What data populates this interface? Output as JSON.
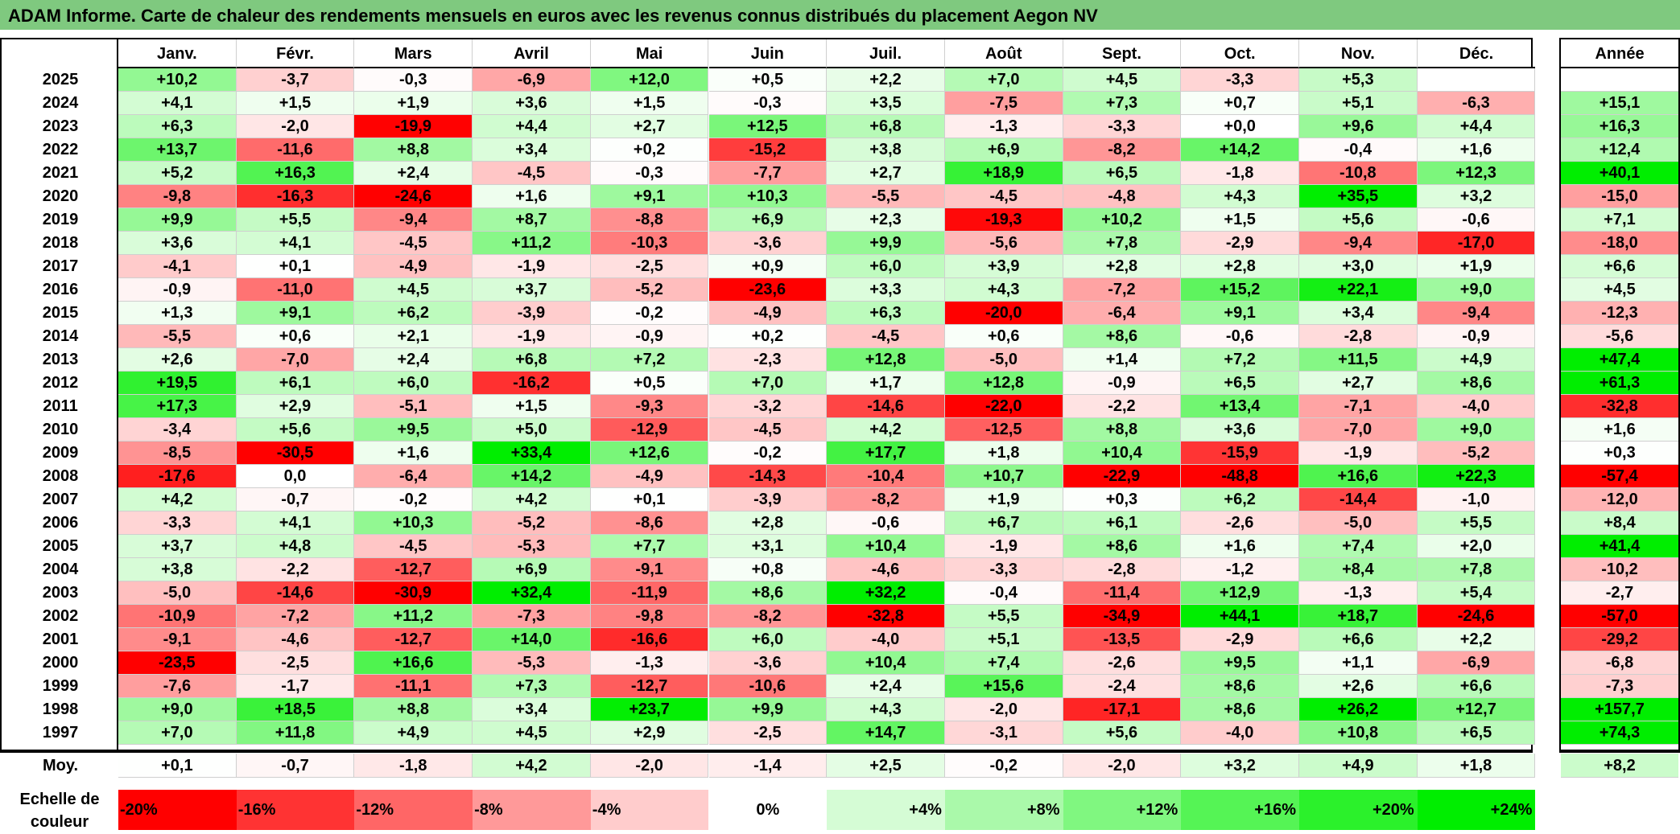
{
  "title": "ADAM Informe. Carte de chaleur des rendements mensuels en euros avec les revenus connus distribués du placement Aegon NV",
  "chart_data": {
    "type": "heatmap",
    "title": "ADAM Informe. Carte de chaleur des rendements mensuels en euros avec les revenus connus distribués du placement Aegon NV",
    "months": [
      "Janv.",
      "Févr.",
      "Mars",
      "Avril",
      "Mai",
      "Juin",
      "Juil.",
      "Août",
      "Sept.",
      "Oct.",
      "Nov.",
      "Déc."
    ],
    "year_header": "Année",
    "rows": [
      {
        "year": "2025",
        "values": [
          "+10,2",
          "-3,7",
          "-0,3",
          "-6,9",
          "+12,0",
          "+0,5",
          "+2,2",
          "+7,0",
          "+4,5",
          "-3,3",
          "+5,3",
          ""
        ],
        "annual": ""
      },
      {
        "year": "2024",
        "values": [
          "+4,1",
          "+1,5",
          "+1,9",
          "+3,6",
          "+1,5",
          "-0,3",
          "+3,5",
          "-7,5",
          "+7,3",
          "+0,7",
          "+5,1",
          "-6,3"
        ],
        "annual": "+15,1"
      },
      {
        "year": "2023",
        "values": [
          "+6,3",
          "-2,0",
          "-19,9",
          "+4,4",
          "+2,7",
          "+12,5",
          "+6,8",
          "-1,3",
          "-3,3",
          "+0,0",
          "+9,6",
          "+4,4"
        ],
        "annual": "+16,3"
      },
      {
        "year": "2022",
        "values": [
          "+13,7",
          "-11,6",
          "+8,8",
          "+3,4",
          "+0,2",
          "-15,2",
          "+3,8",
          "+6,9",
          "-8,2",
          "+14,2",
          "-0,4",
          "+1,6"
        ],
        "annual": "+12,4"
      },
      {
        "year": "2021",
        "values": [
          "+5,2",
          "+16,3",
          "+2,4",
          "-4,5",
          "-0,3",
          "-7,7",
          "+2,7",
          "+18,9",
          "+6,5",
          "-1,8",
          "-10,8",
          "+12,3"
        ],
        "annual": "+40,1"
      },
      {
        "year": "2020",
        "values": [
          "-9,8",
          "-16,3",
          "-24,6",
          "+1,6",
          "+9,1",
          "+10,3",
          "-5,5",
          "-4,5",
          "-4,8",
          "+4,3",
          "+35,5",
          "+3,2"
        ],
        "annual": "-15,0"
      },
      {
        "year": "2019",
        "values": [
          "+9,9",
          "+5,5",
          "-9,4",
          "+8,7",
          "-8,8",
          "+6,9",
          "+2,3",
          "-19,3",
          "+10,2",
          "+1,5",
          "+5,6",
          "-0,6"
        ],
        "annual": "+7,1"
      },
      {
        "year": "2018",
        "values": [
          "+3,6",
          "+4,1",
          "-4,5",
          "+11,2",
          "-10,3",
          "-3,6",
          "+9,9",
          "-5,6",
          "+7,8",
          "-2,9",
          "-9,4",
          "-17,0"
        ],
        "annual": "-18,0"
      },
      {
        "year": "2017",
        "values": [
          "-4,1",
          "+0,1",
          "-4,9",
          "-1,9",
          "-2,5",
          "+0,9",
          "+6,0",
          "+3,9",
          "+2,8",
          "+2,8",
          "+3,0",
          "+1,9"
        ],
        "annual": "+6,6"
      },
      {
        "year": "2016",
        "values": [
          "-0,9",
          "-11,0",
          "+4,5",
          "+3,7",
          "-5,2",
          "-23,6",
          "+3,3",
          "+4,3",
          "-7,2",
          "+15,2",
          "+22,1",
          "+9,0"
        ],
        "annual": "+4,5"
      },
      {
        "year": "2015",
        "values": [
          "+1,3",
          "+9,1",
          "+6,2",
          "-3,9",
          "-0,2",
          "-4,9",
          "+6,3",
          "-20,0",
          "-6,4",
          "+9,1",
          "+3,4",
          "-9,4"
        ],
        "annual": "-12,3"
      },
      {
        "year": "2014",
        "values": [
          "-5,5",
          "+0,6",
          "+2,1",
          "-1,9",
          "-0,9",
          "+0,2",
          "-4,5",
          "+0,6",
          "+8,6",
          "-0,6",
          "-2,8",
          "-0,9"
        ],
        "annual": "-5,6"
      },
      {
        "year": "2013",
        "values": [
          "+2,6",
          "-7,0",
          "+2,4",
          "+6,8",
          "+7,2",
          "-2,3",
          "+12,8",
          "-5,0",
          "+1,4",
          "+7,2",
          "+11,5",
          "+4,9"
        ],
        "annual": "+47,4"
      },
      {
        "year": "2012",
        "values": [
          "+19,5",
          "+6,1",
          "+6,0",
          "-16,2",
          "+0,5",
          "+7,0",
          "+1,7",
          "+12,8",
          "-0,9",
          "+6,5",
          "+2,7",
          "+8,6"
        ],
        "annual": "+61,3"
      },
      {
        "year": "2011",
        "values": [
          "+17,3",
          "+2,9",
          "-5,1",
          "+1,5",
          "-9,3",
          "-3,2",
          "-14,6",
          "-22,0",
          "-2,2",
          "+13,4",
          "-7,1",
          "-4,0"
        ],
        "annual": "-32,8"
      },
      {
        "year": "2010",
        "values": [
          "-3,4",
          "+5,6",
          "+9,5",
          "+5,0",
          "-12,9",
          "-4,5",
          "+4,2",
          "-12,5",
          "+8,8",
          "+3,6",
          "-7,0",
          "+9,0"
        ],
        "annual": "+1,6"
      },
      {
        "year": "2009",
        "values": [
          "-8,5",
          "-30,5",
          "+1,6",
          "+33,4",
          "+12,6",
          "-0,2",
          "+17,7",
          "+1,8",
          "+10,4",
          "-15,9",
          "-1,9",
          "-5,2"
        ],
        "annual": "+0,3"
      },
      {
        "year": "2008",
        "values": [
          "-17,6",
          "0,0",
          "-6,4",
          "+14,2",
          "-4,9",
          "-14,3",
          "-10,4",
          "+10,7",
          "-22,9",
          "-48,8",
          "+16,6",
          "+22,3"
        ],
        "annual": "-57,4"
      },
      {
        "year": "2007",
        "values": [
          "+4,2",
          "-0,7",
          "-0,2",
          "+4,2",
          "+0,1",
          "-3,9",
          "-8,2",
          "+1,9",
          "+0,3",
          "+6,2",
          "-14,4",
          "-1,0"
        ],
        "annual": "-12,0"
      },
      {
        "year": "2006",
        "values": [
          "-3,3",
          "+4,1",
          "+10,3",
          "-5,2",
          "-8,6",
          "+2,8",
          "-0,6",
          "+6,7",
          "+6,1",
          "-2,6",
          "-5,0",
          "+5,5"
        ],
        "annual": "+8,4"
      },
      {
        "year": "2005",
        "values": [
          "+3,7",
          "+4,8",
          "-4,5",
          "-5,3",
          "+7,7",
          "+3,1",
          "+10,4",
          "-1,9",
          "+8,6",
          "+1,6",
          "+7,4",
          "+2,0"
        ],
        "annual": "+41,4"
      },
      {
        "year": "2004",
        "values": [
          "+3,8",
          "-2,2",
          "-12,7",
          "+6,9",
          "-9,1",
          "+0,8",
          "-4,6",
          "-3,3",
          "-2,8",
          "-1,2",
          "+8,4",
          "+7,8"
        ],
        "annual": "-10,2"
      },
      {
        "year": "2003",
        "values": [
          "-5,0",
          "-14,6",
          "-30,9",
          "+32,4",
          "-11,9",
          "+8,6",
          "+32,2",
          "-0,4",
          "-11,4",
          "+12,9",
          "-1,3",
          "+5,4"
        ],
        "annual": "-2,7"
      },
      {
        "year": "2002",
        "values": [
          "-10,9",
          "-7,2",
          "+11,2",
          "-7,3",
          "-9,8",
          "-8,2",
          "-32,8",
          "+5,5",
          "-34,9",
          "+44,1",
          "+18,7",
          "-24,6"
        ],
        "annual": "-57,0"
      },
      {
        "year": "2001",
        "values": [
          "-9,1",
          "-4,6",
          "-12,7",
          "+14,0",
          "-16,6",
          "+6,0",
          "-4,0",
          "+5,1",
          "-13,5",
          "-2,9",
          "+6,6",
          "+2,2"
        ],
        "annual": "-29,2"
      },
      {
        "year": "2000",
        "values": [
          "-23,5",
          "-2,5",
          "+16,6",
          "-5,3",
          "-1,3",
          "-3,6",
          "+10,4",
          "+7,4",
          "-2,6",
          "+9,5",
          "+1,1",
          "-6,9"
        ],
        "annual": "-6,8"
      },
      {
        "year": "1999",
        "values": [
          "-7,6",
          "-1,7",
          "-11,1",
          "+7,3",
          "-12,7",
          "-10,6",
          "+2,4",
          "+15,6",
          "-2,4",
          "+8,6",
          "+2,6",
          "+6,6"
        ],
        "annual": "-7,3"
      },
      {
        "year": "1998",
        "values": [
          "+9,0",
          "+18,5",
          "+8,8",
          "+3,4",
          "+23,7",
          "+9,9",
          "+4,3",
          "-2,0",
          "-17,1",
          "+8,6",
          "+26,2",
          "+12,7"
        ],
        "annual": "+157,7"
      },
      {
        "year": "1997",
        "values": [
          "+7,0",
          "+11,8",
          "+4,9",
          "+4,5",
          "+2,9",
          "-2,5",
          "+14,7",
          "-3,1",
          "+5,6",
          "-4,0",
          "+10,8",
          "+6,5"
        ],
        "annual": "+74,3"
      }
    ],
    "average": {
      "label": "Moy.",
      "values": [
        "+0,1",
        "-0,7",
        "-1,8",
        "+4,2",
        "-2,0",
        "-1,4",
        "+2,5",
        "-0,2",
        "-2,0",
        "+3,2",
        "+4,9",
        "+1,8"
      ],
      "annual": "+8,2"
    },
    "legend": {
      "title_line1": "Echelle de",
      "title_line2": "couleur",
      "labels": [
        "-20%",
        "-16%",
        "-12%",
        "-8%",
        "-4%",
        "0%",
        "+4%",
        "+8%",
        "+12%",
        "+16%",
        "+20%",
        "+24%"
      ]
    },
    "colors": {
      "neg_max": "#ff0000",
      "zero": "#ffffff",
      "pos_max": "#00ee00",
      "title_bar": "#7fc97f"
    }
  }
}
